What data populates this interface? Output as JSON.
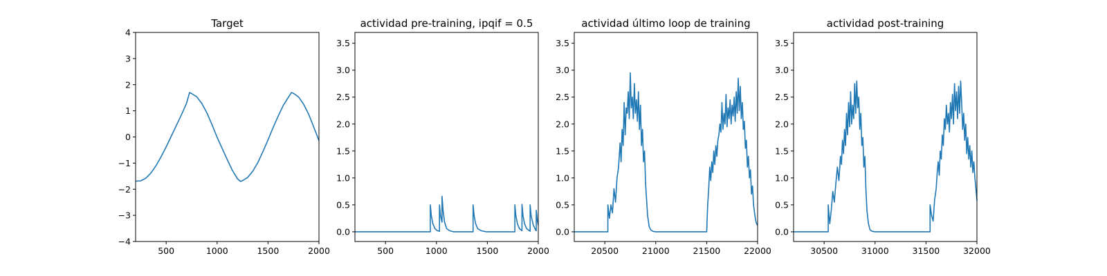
{
  "figure": {
    "background": "#ffffff",
    "line_color": "#1f77b4"
  },
  "chart_data": [
    {
      "type": "line",
      "title": "Target",
      "xlabel": "",
      "ylabel": "",
      "xlim": [
        200,
        2000
      ],
      "ylim": [
        -4,
        4
      ],
      "xticks": [
        500,
        1000,
        1500,
        2000
      ],
      "yticks": [
        -4,
        -3,
        -2,
        -1,
        0,
        1,
        2,
        3,
        4
      ],
      "xtick_labels": [
        "500",
        "1000",
        "1500",
        "2000"
      ],
      "ytick_labels": [
        "−4",
        "−3",
        "−2",
        "−1",
        "0",
        "1",
        "2",
        "3",
        "4"
      ],
      "grid": false,
      "series": [
        {
          "x": [
            200,
            250,
            300,
            350,
            400,
            450,
            500,
            550,
            600,
            650,
            700,
            730,
            750,
            800,
            850,
            900,
            950,
            1000,
            1050,
            1100,
            1150,
            1200,
            1230,
            1250,
            1300,
            1350,
            1400,
            1450,
            1500,
            1550,
            1600,
            1650,
            1700,
            1730,
            1750,
            1800,
            1850,
            1900,
            1950,
            2000
          ],
          "y": [
            -1.69,
            -1.68,
            -1.58,
            -1.38,
            -1.1,
            -0.76,
            -0.38,
            0.03,
            0.44,
            0.85,
            1.29,
            1.7,
            1.66,
            1.54,
            1.28,
            0.92,
            0.47,
            -0.01,
            -0.44,
            -0.87,
            -1.28,
            -1.6,
            -1.7,
            -1.67,
            -1.55,
            -1.31,
            -0.98,
            -0.56,
            -0.11,
            0.36,
            0.8,
            1.21,
            1.52,
            1.7,
            1.67,
            1.53,
            1.25,
            0.86,
            0.37,
            -0.14
          ]
        }
      ]
    },
    {
      "type": "line",
      "title": "actividad pre-training, ipqif = 0.5",
      "xlabel": "",
      "ylabel": "",
      "xlim": [
        200,
        2000
      ],
      "ylim": [
        -0.18,
        3.7
      ],
      "xticks": [
        500,
        1000,
        1500,
        2000
      ],
      "yticks": [
        0.0,
        0.5,
        1.0,
        1.5,
        2.0,
        2.5,
        3.0,
        3.5
      ],
      "xtick_labels": [
        "500",
        "1000",
        "1500",
        "2000"
      ],
      "ytick_labels": [
        "0.0",
        "0.5",
        "1.0",
        "1.5",
        "2.0",
        "2.5",
        "3.0",
        "3.5"
      ],
      "grid": false,
      "series": [
        {
          "x": [
            200,
            940,
            940,
            950,
            965,
            985,
            1010,
            1030,
            1030,
            1040,
            1055,
            1055,
            1065,
            1080,
            1100,
            1130,
            1170,
            1360,
            1360,
            1370,
            1385,
            1405,
            1440,
            1490,
            1770,
            1770,
            1780,
            1795,
            1815,
            1840,
            1840,
            1850,
            1865,
            1885,
            1920,
            1920,
            1930,
            1950,
            1975,
            1980,
            1980,
            1990,
            2000
          ],
          "y": [
            0,
            0,
            0.5,
            0.3,
            0.15,
            0.06,
            0.02,
            0.01,
            0.5,
            0.3,
            0.18,
            0.66,
            0.4,
            0.18,
            0.06,
            0.02,
            0,
            0,
            0.5,
            0.3,
            0.15,
            0.06,
            0.02,
            0,
            0,
            0.5,
            0.3,
            0.15,
            0.06,
            0.02,
            0.51,
            0.3,
            0.15,
            0.06,
            0.01,
            0.5,
            0.3,
            0.13,
            0.03,
            0.02,
            0.4,
            0.22,
            0.12
          ]
        }
      ]
    },
    {
      "type": "line",
      "title": "actividad último loop de training",
      "xlabel": "",
      "ylabel": "",
      "xlim": [
        20200,
        22000
      ],
      "ylim": [
        -0.18,
        3.7
      ],
      "xticks": [
        20500,
        21000,
        21500,
        22000
      ],
      "yticks": [
        0.0,
        0.5,
        1.0,
        1.5,
        2.0,
        2.5,
        3.0,
        3.5
      ],
      "xtick_labels": [
        "20500",
        "21000",
        "21500",
        "22000"
      ],
      "ytick_labels": [
        "0.0",
        "0.5",
        "1.0",
        "1.5",
        "2.0",
        "2.5",
        "3.0",
        "3.5"
      ],
      "grid": false,
      "series": [
        {
          "x": [
            20200,
            20530,
            20530,
            20545,
            20560,
            20575,
            20590,
            20605,
            20620,
            20635,
            20650,
            20660,
            20670,
            20680,
            20690,
            20700,
            20710,
            20720,
            20730,
            20740,
            20750,
            20760,
            20770,
            20780,
            20790,
            20800,
            20810,
            20820,
            20830,
            20840,
            20850,
            20860,
            20870,
            20880,
            20890,
            20900,
            20910,
            20920,
            20935,
            20950,
            20970,
            21000,
            21050,
            21100,
            21500,
            21510,
            21520,
            21530,
            21540,
            21550,
            21560,
            21570,
            21580,
            21590,
            21600,
            21610,
            21620,
            21630,
            21640,
            21650,
            21660,
            21670,
            21680,
            21690,
            21700,
            21710,
            21720,
            21730,
            21740,
            21750,
            21760,
            21770,
            21780,
            21790,
            21800,
            21810,
            21820,
            21830,
            21840,
            21850,
            21860,
            21870,
            21880,
            21890,
            21900,
            21910,
            21920,
            21930,
            21940,
            21950,
            21960,
            21970,
            21980,
            21990,
            22000
          ],
          "y": [
            0,
            0,
            0.5,
            0.25,
            0.5,
            0.35,
            0.8,
            0.55,
            1.0,
            1.2,
            1.65,
            1.3,
            1.9,
            1.6,
            2.4,
            1.8,
            2.3,
            2.2,
            2.6,
            2.1,
            2.95,
            2.3,
            2.5,
            2.1,
            2.75,
            2.2,
            2.45,
            2.05,
            2.6,
            1.9,
            2.35,
            1.6,
            1.9,
            1.3,
            1.5,
            0.9,
            0.6,
            0.3,
            0.1,
            0.04,
            0.01,
            0,
            0,
            0,
            0,
            0.5,
            0.8,
            1.2,
            0.95,
            1.3,
            1.1,
            1.5,
            1.25,
            1.6,
            1.4,
            1.7,
            1.8,
            2.0,
            1.85,
            2.4,
            1.9,
            2.2,
            2.0,
            2.55,
            1.95,
            2.3,
            2.1,
            2.45,
            2.0,
            2.35,
            2.15,
            2.5,
            2.05,
            2.6,
            2.2,
            2.85,
            2.25,
            2.7,
            2.1,
            2.4,
            1.9,
            2.05,
            1.55,
            1.7,
            1.2,
            1.4,
            1.0,
            1.15,
            0.7,
            0.85,
            0.5,
            0.35,
            0.22,
            0.15,
            0.12
          ]
        }
      ]
    },
    {
      "type": "line",
      "title": "actividad post-training",
      "xlabel": "",
      "ylabel": "",
      "xlim": [
        30200,
        32000
      ],
      "ylim": [
        -0.18,
        3.7
      ],
      "xticks": [
        30500,
        31000,
        31500,
        32000
      ],
      "yticks": [
        0.0,
        0.5,
        1.0,
        1.5,
        2.0,
        2.5,
        3.0,
        3.5
      ],
      "xtick_labels": [
        "30500",
        "31000",
        "31500",
        "32000"
      ],
      "ytick_labels": [
        "0.0",
        "0.5",
        "1.0",
        "1.5",
        "2.0",
        "2.5",
        "3.0",
        "3.5"
      ],
      "grid": false,
      "series": [
        {
          "x": [
            30200,
            30540,
            30540,
            30555,
            30570,
            30585,
            30600,
            30615,
            30630,
            30645,
            30660,
            30670,
            30680,
            30690,
            30700,
            30710,
            30720,
            30730,
            30740,
            30750,
            30760,
            30770,
            30780,
            30790,
            30800,
            30810,
            30820,
            30830,
            30840,
            30850,
            30860,
            30870,
            30880,
            30890,
            30900,
            30910,
            30920,
            30935,
            30950,
            30970,
            31000,
            31050,
            31100,
            31540,
            31540,
            31555,
            31570,
            31585,
            31600,
            31610,
            31620,
            31630,
            31640,
            31650,
            31660,
            31670,
            31680,
            31690,
            31700,
            31710,
            31720,
            31730,
            31740,
            31750,
            31760,
            31770,
            31780,
            31790,
            31800,
            31810,
            31820,
            31830,
            31840,
            31850,
            31860,
            31870,
            31880,
            31890,
            31900,
            31910,
            31920,
            31930,
            31940,
            31950,
            31960,
            31970,
            31980,
            31990,
            32000
          ],
          "y": [
            0,
            0,
            0.5,
            0.15,
            0.4,
            0.75,
            0.55,
            0.9,
            1.2,
            0.95,
            1.4,
            1.25,
            1.7,
            1.45,
            1.9,
            1.6,
            2.2,
            1.8,
            2.4,
            1.95,
            2.6,
            2.0,
            2.35,
            2.1,
            2.75,
            2.2,
            2.8,
            2.3,
            2.5,
            1.9,
            2.2,
            1.6,
            1.75,
            1.2,
            1.4,
            0.8,
            0.4,
            0.15,
            0.04,
            0.01,
            0,
            0,
            0,
            0,
            0.5,
            0.3,
            0.2,
            0.6,
            0.8,
            1.1,
            1.3,
            1.05,
            1.5,
            1.35,
            1.8,
            1.6,
            2.1,
            1.9,
            2.35,
            2.0,
            2.2,
            1.85,
            2.4,
            2.1,
            2.55,
            2.0,
            2.75,
            2.25,
            2.6,
            2.1,
            2.7,
            2.2,
            2.8,
            2.4,
            1.9,
            2.2,
            1.7,
            2.0,
            1.45,
            1.75,
            1.35,
            1.6,
            1.2,
            1.5,
            1.1,
            1.3,
            1.0,
            0.8,
            0.58
          ]
        }
      ]
    }
  ]
}
